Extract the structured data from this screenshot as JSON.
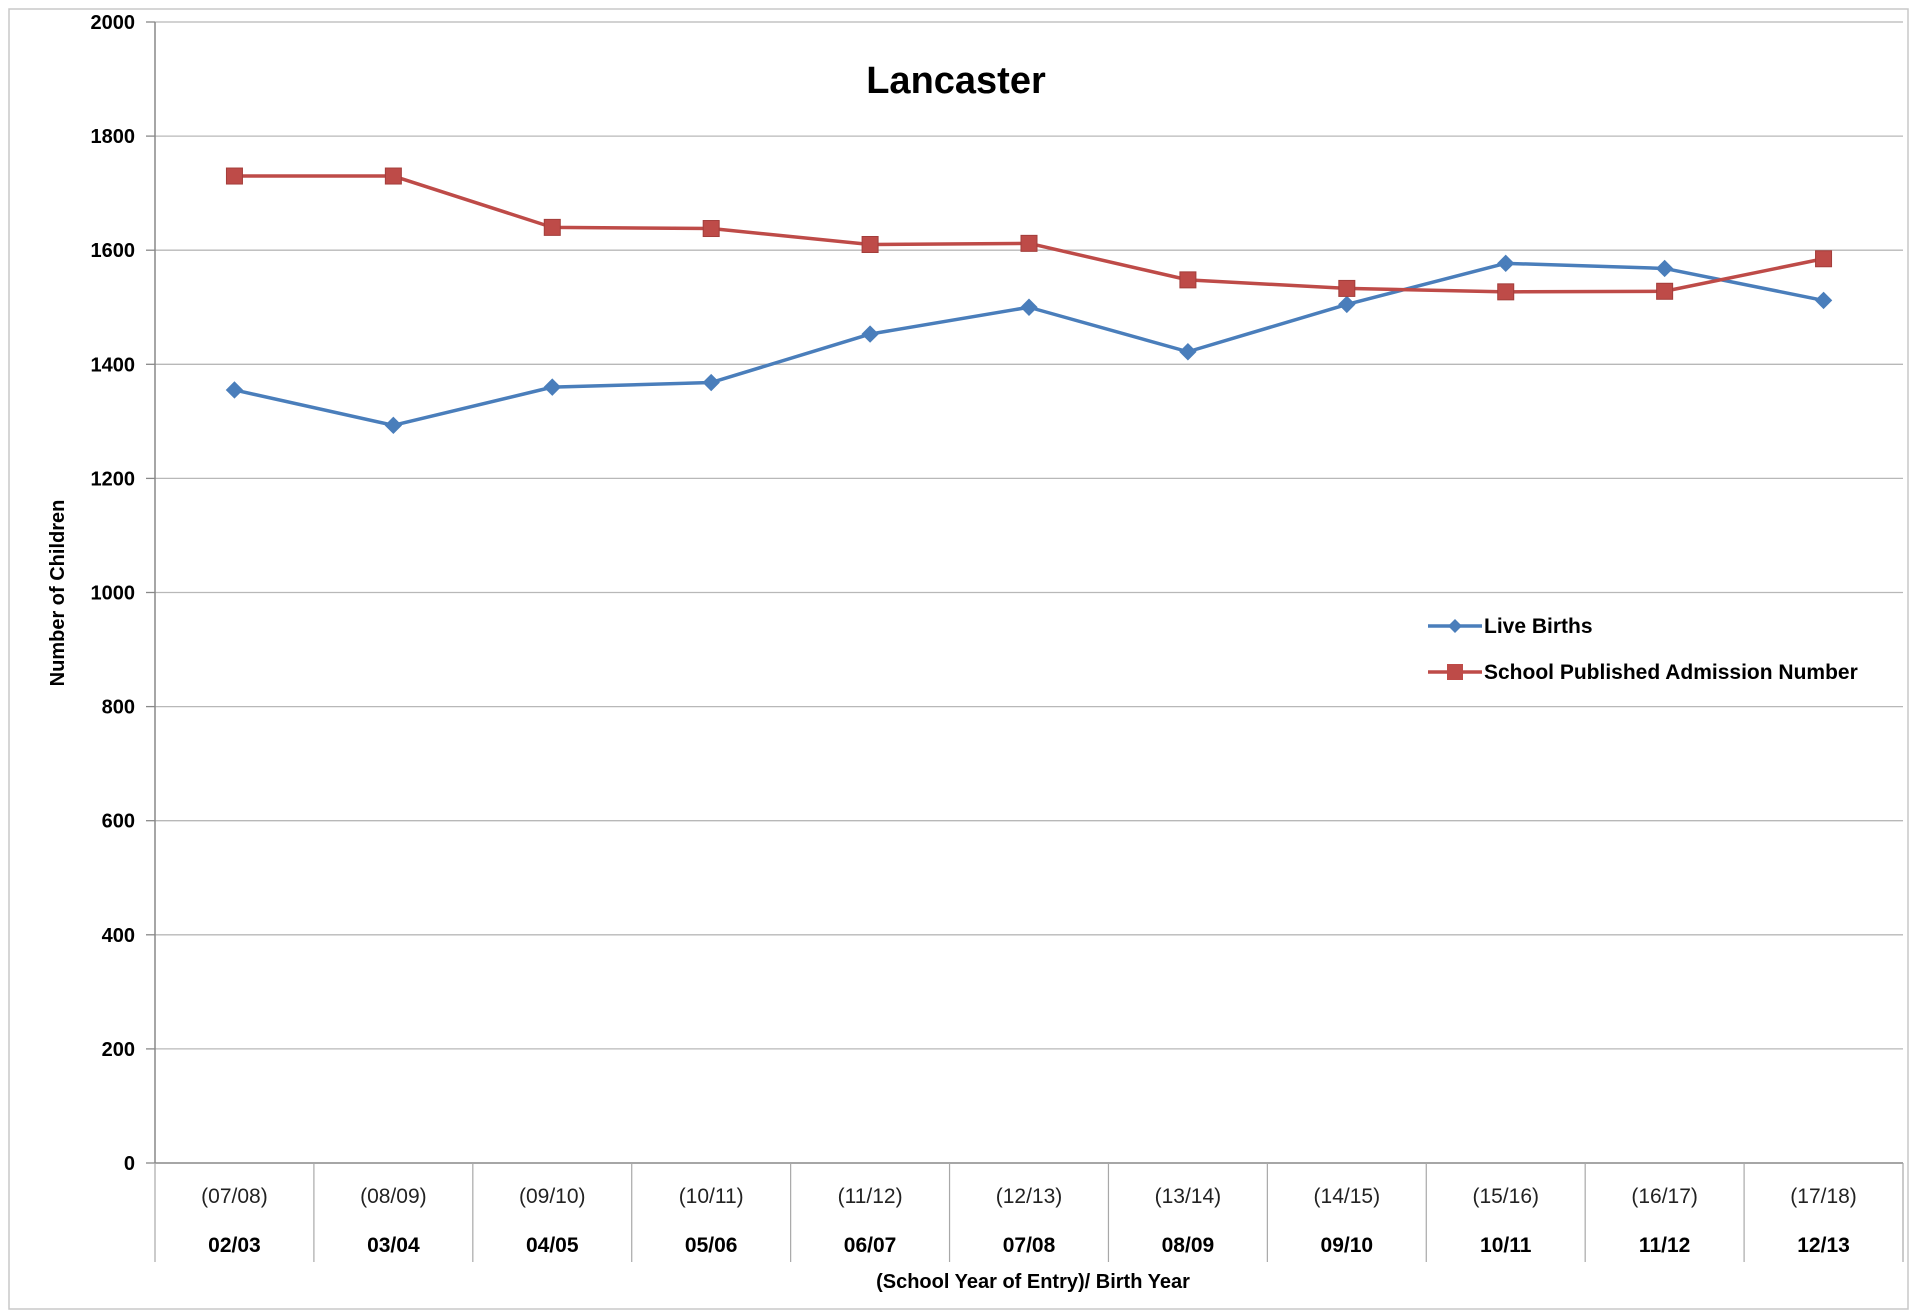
{
  "chart_data": {
    "type": "line",
    "title": "Lancaster",
    "xlabel": "(School Year of Entry)/ Birth Year",
    "ylabel": "Number of Children",
    "ylim": [
      0,
      2000
    ],
    "yticks": [
      0,
      200,
      400,
      600,
      800,
      1000,
      1200,
      1400,
      1600,
      1800,
      2000
    ],
    "categories": [
      {
        "entry": "(07/08)",
        "birth": "02/03"
      },
      {
        "entry": "(08/09)",
        "birth": "03/04"
      },
      {
        "entry": "(09/10)",
        "birth": "04/05"
      },
      {
        "entry": "(10/11)",
        "birth": "05/06"
      },
      {
        "entry": "(11/12)",
        "birth": "06/07"
      },
      {
        "entry": "(12/13)",
        "birth": "07/08"
      },
      {
        "entry": "(13/14)",
        "birth": "08/09"
      },
      {
        "entry": "(14/15)",
        "birth": "09/10"
      },
      {
        "entry": "(15/16)",
        "birth": "10/11"
      },
      {
        "entry": "(16/17)",
        "birth": "11/12"
      },
      {
        "entry": "(17/18)",
        "birth": "12/13"
      }
    ],
    "series": [
      {
        "name": "Live Births",
        "color": "#4A7EBB",
        "marker": "diamond",
        "values": [
          1355,
          1293,
          1360,
          1368,
          1453,
          1500,
          1422,
          1505,
          1577,
          1568,
          1512
        ]
      },
      {
        "name": "School Published Admission Number",
        "color": "#BE4B48",
        "marker": "square",
        "values": [
          1730,
          1730,
          1640,
          1638,
          1610,
          1612,
          1548,
          1533,
          1527,
          1528,
          1585
        ]
      }
    ],
    "grid": true,
    "legend": "right"
  }
}
